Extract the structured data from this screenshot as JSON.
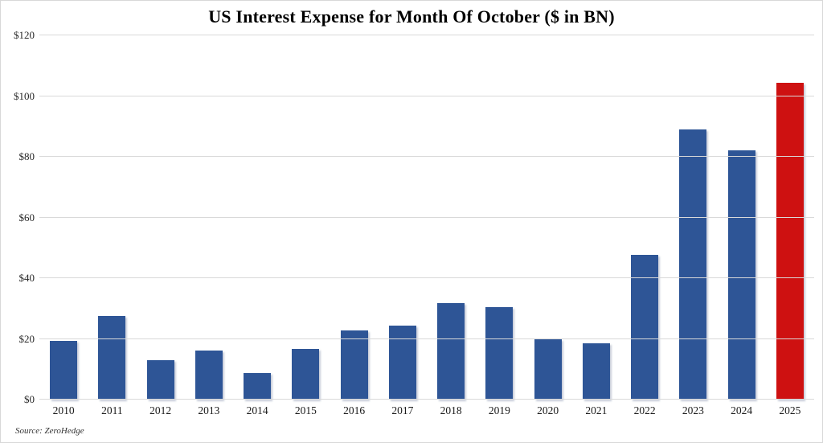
{
  "title": "US Interest Expense for Month Of October ($ in BN)",
  "source": "Source: ZeroHedge",
  "colors": {
    "bar": "#2E5596",
    "highlight": "#CE1111",
    "gridline": "#D9D9D9",
    "title_text": "#000000",
    "tick_text": "#262626",
    "background": "#FFFFFF"
  },
  "chart_data": {
    "type": "bar",
    "title": "US Interest Expense for Month Of October ($ in BN)",
    "categories": [
      "2010",
      "2011",
      "2012",
      "2013",
      "2014",
      "2015",
      "2016",
      "2017",
      "2018",
      "2019",
      "2020",
      "2021",
      "2022",
      "2023",
      "2024",
      "2025"
    ],
    "values": [
      19.3,
      27.6,
      12.9,
      16.2,
      8.8,
      16.6,
      22.7,
      24.3,
      31.9,
      30.5,
      19.8,
      18.6,
      47.6,
      89.1,
      82.1,
      104.5
    ],
    "highlight_index": 15,
    "xlabel": "",
    "ylabel": "",
    "ylim": [
      0,
      120
    ],
    "yticks": [
      0,
      20,
      40,
      60,
      80,
      100,
      120
    ],
    "ytick_labels": [
      "$0",
      "$20",
      "$40",
      "$60",
      "$80",
      "$100",
      "$120"
    ],
    "grid": true,
    "legend": false,
    "annotation": "Source: ZeroHedge"
  }
}
